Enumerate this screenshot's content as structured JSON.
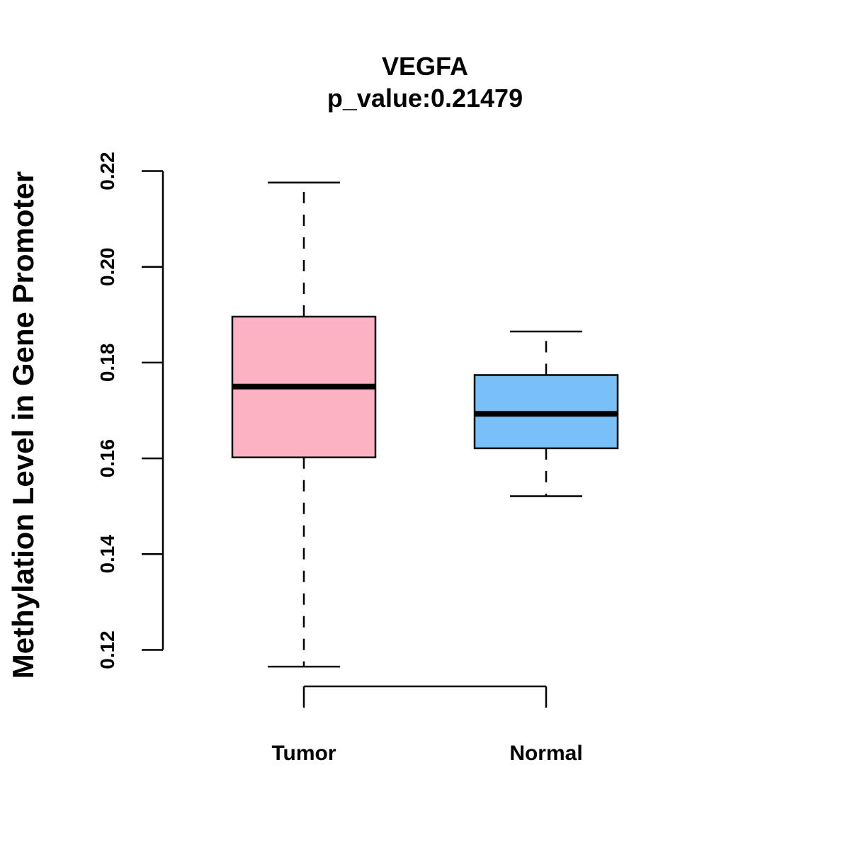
{
  "chart_data": {
    "type": "boxplot",
    "title": "VEGFA",
    "subtitle": "p_value:0.21479",
    "ylabel": "Methylation Level in Gene Promoter",
    "xlabel": "",
    "ylim": [
      0.12,
      0.22
    ],
    "yticks": [
      0.12,
      0.14,
      0.16,
      0.18,
      0.2,
      0.22
    ],
    "ytick_labels": [
      "0.12",
      "0.14",
      "0.16",
      "0.18",
      "0.20",
      "0.22"
    ],
    "categories": [
      "Tumor",
      "Normal"
    ],
    "groups": [
      {
        "name": "Tumor",
        "whisker_low": 0.1165,
        "q1": 0.1602,
        "median": 0.175,
        "q3": 0.1896,
        "whisker_high": 0.2176,
        "color": "#fcb2c3"
      },
      {
        "name": "Normal",
        "whisker_low": 0.1521,
        "q1": 0.1621,
        "median": 0.1693,
        "q3": 0.1774,
        "whisker_high": 0.1865,
        "color": "#78c0f8"
      }
    ],
    "grid": false,
    "legend": "none"
  }
}
